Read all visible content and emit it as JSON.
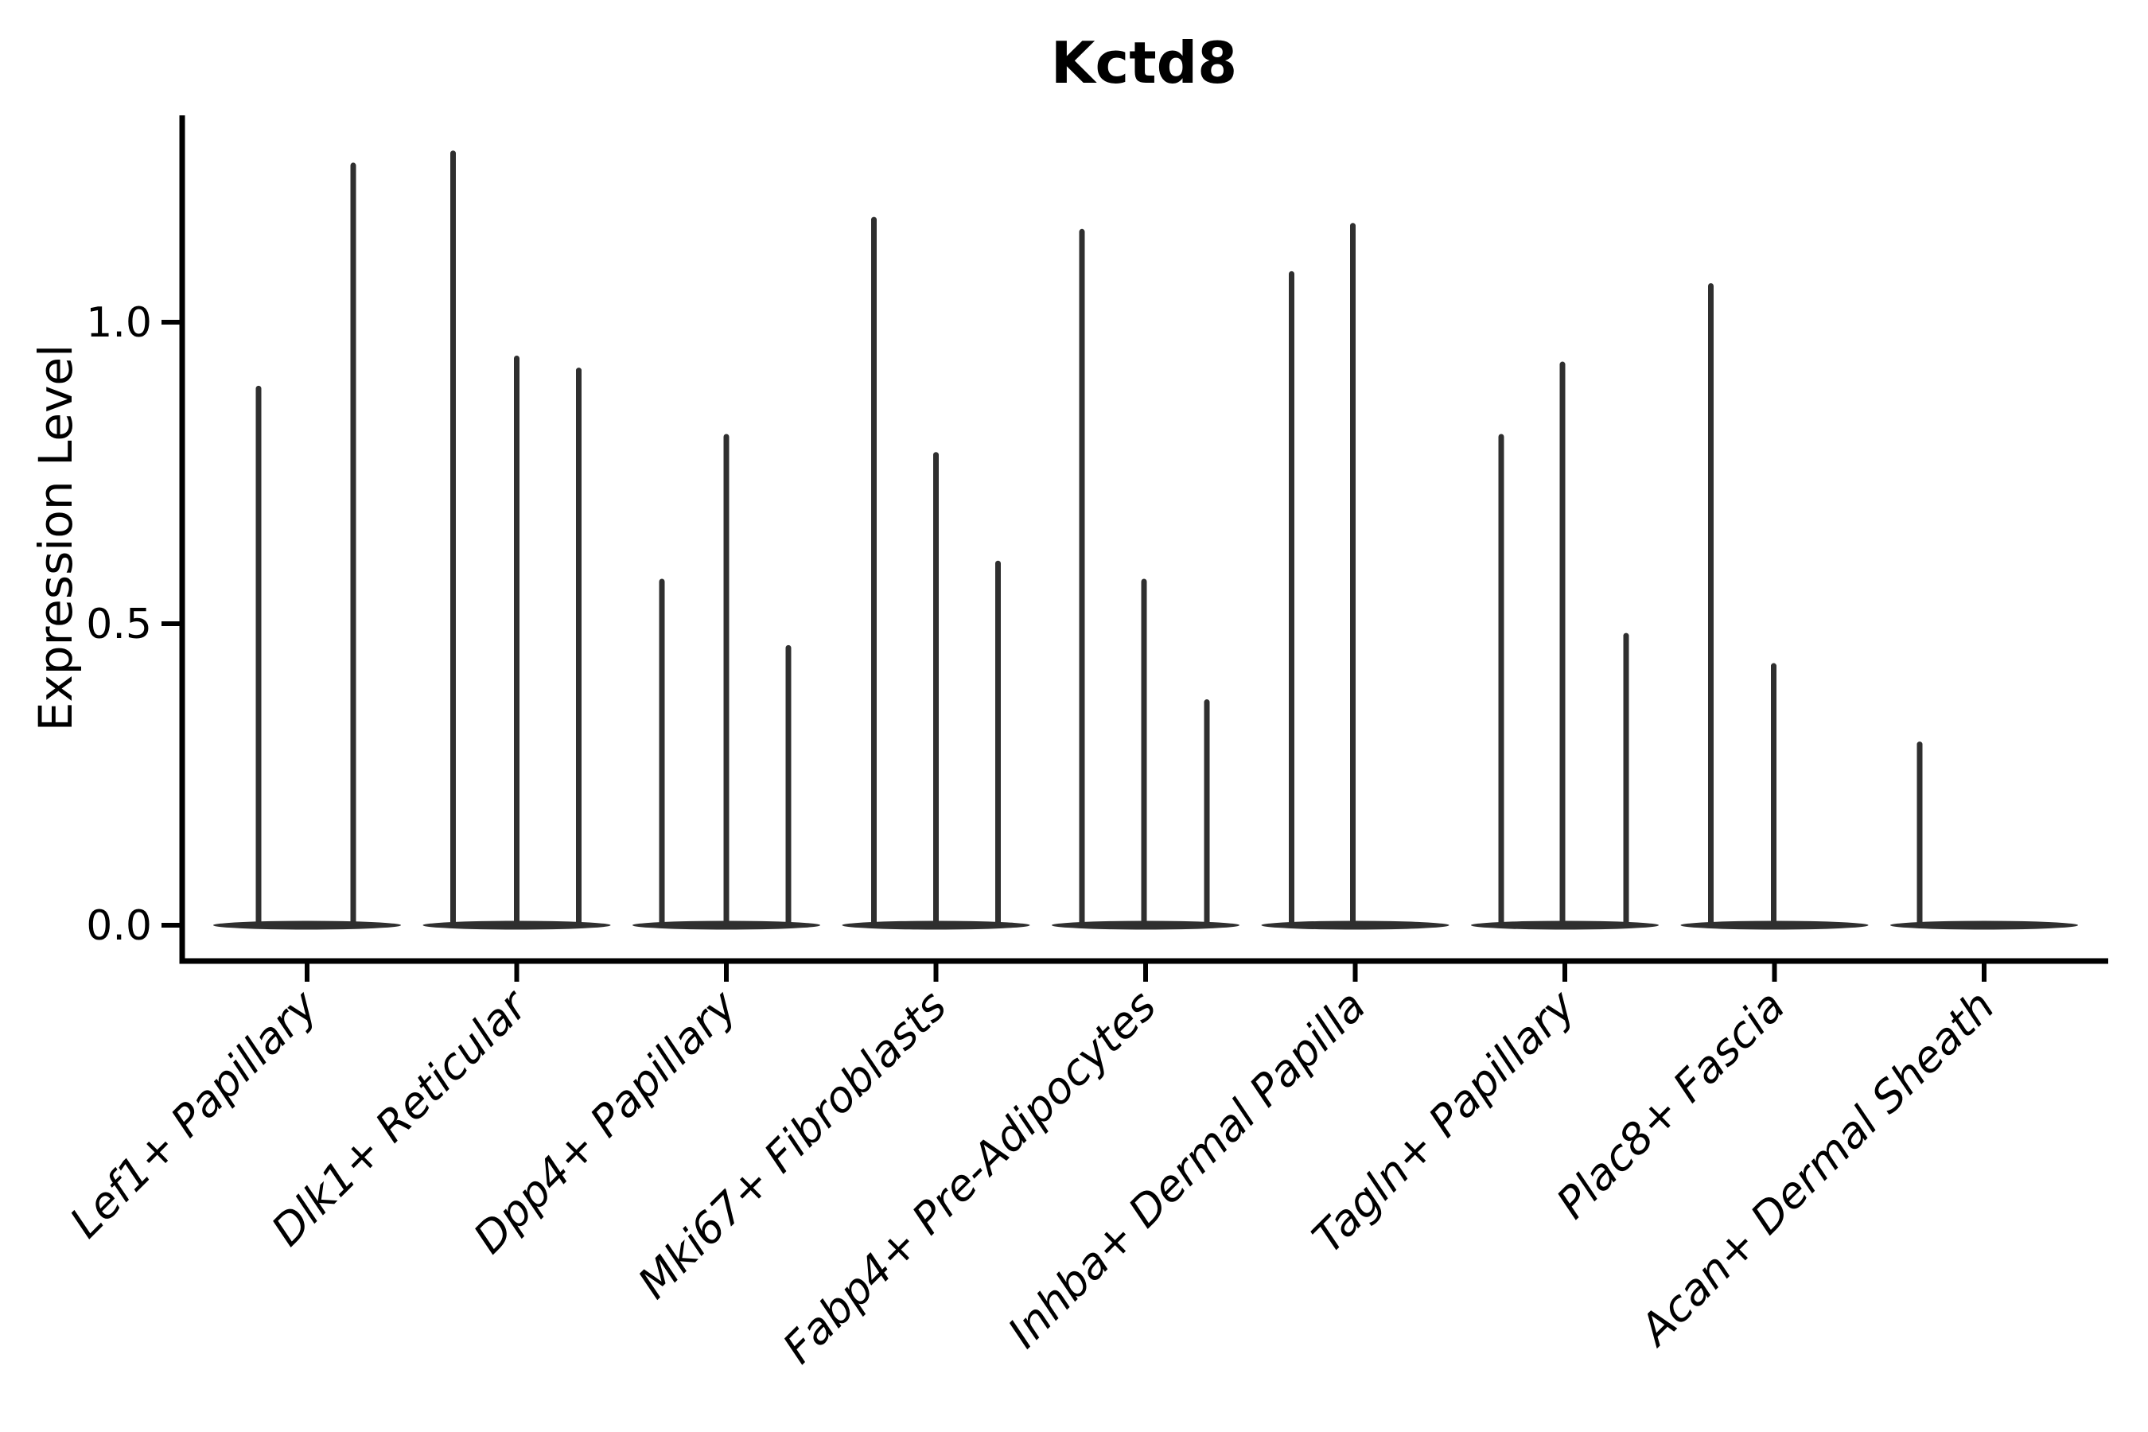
{
  "chart_data": {
    "type": "violin",
    "title": "Kctd8",
    "ylabel": "Expression Level",
    "xlabel": "",
    "ylim": [
      -0.06,
      1.34
    ],
    "ytick_labels": [
      "0.0",
      "0.5",
      "1.0"
    ],
    "ytick_values": [
      0.0,
      0.5,
      1.0
    ],
    "grid": false,
    "legend": false,
    "categories": [
      "Lef1+ Papillary",
      "Dlk1+ Reticular",
      "Dpp4+ Papillary",
      "Mki67+ Fibroblasts",
      "Fabp4+ Pre-Adipocytes",
      "Inhba+ Dermal Papilla",
      "Tagln+ Papillary",
      "Plac8+ Fascia",
      "Acan+ Dermal Sheath"
    ],
    "violins": [
      {
        "category": "Lef1+ Papillary",
        "spikes": [
          {
            "dx": -61,
            "value": 0.89
          },
          {
            "dx": 58,
            "value": 1.26
          }
        ]
      },
      {
        "category": "Dlk1+ Reticular",
        "spikes": [
          {
            "dx": -80,
            "value": 1.28
          },
          {
            "dx": 0,
            "value": 0.94
          },
          {
            "dx": 78,
            "value": 0.92
          }
        ]
      },
      {
        "category": "Dpp4+ Papillary",
        "spikes": [
          {
            "dx": -81,
            "value": 0.57
          },
          {
            "dx": 0,
            "value": 0.81
          },
          {
            "dx": 78,
            "value": 0.46
          }
        ]
      },
      {
        "category": "Mki67+ Fibroblasts",
        "spikes": [
          {
            "dx": -78,
            "value": 1.17
          },
          {
            "dx": 0,
            "value": 0.78
          },
          {
            "dx": 78,
            "value": 0.6
          }
        ]
      },
      {
        "category": "Fabp4+ Pre-Adipocytes",
        "spikes": [
          {
            "dx": -80,
            "value": 1.15
          },
          {
            "dx": -2,
            "value": 0.57
          },
          {
            "dx": 77,
            "value": 0.37
          }
        ]
      },
      {
        "category": "Inhba+ Dermal Papilla",
        "spikes": [
          {
            "dx": -80,
            "value": 1.08
          },
          {
            "dx": -3,
            "value": 1.16
          }
        ]
      },
      {
        "category": "Tagln+ Papillary",
        "spikes": [
          {
            "dx": -80,
            "value": 0.81
          },
          {
            "dx": -3,
            "value": 0.93
          },
          {
            "dx": 77,
            "value": 0.48
          }
        ]
      },
      {
        "category": "Plac8+ Fascia",
        "spikes": [
          {
            "dx": -80,
            "value": 1.06
          },
          {
            "dx": -1,
            "value": 0.43
          }
        ]
      },
      {
        "category": "Acan+ Dermal Sheath",
        "spikes": [
          {
            "dx": -81,
            "value": 0.3
          }
        ]
      }
    ],
    "colors": {
      "violin": "#2f2f2f",
      "axis": "#000000",
      "text": "#000000",
      "background": "#ffffff"
    }
  }
}
